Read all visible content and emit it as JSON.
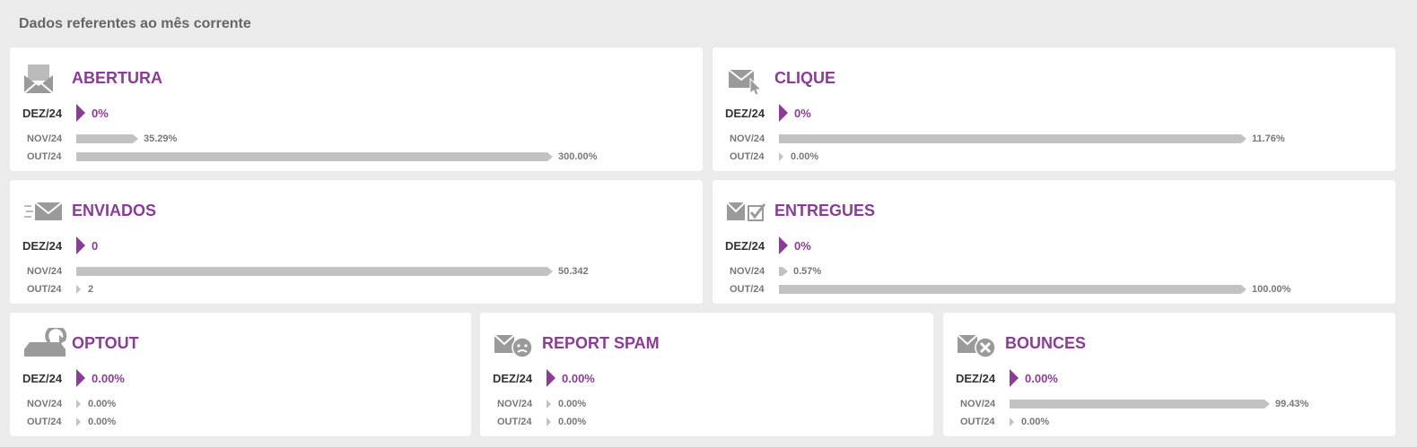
{
  "page_title": "Dados referentes ao mês corrente",
  "accent_color": "#8a3c96",
  "bar_color": "#c2c2c2",
  "cards": {
    "abertura": {
      "icon": "envelope-open-icon",
      "title": "ABERTURA",
      "current": {
        "label": "DEZ/24",
        "value": "0%"
      },
      "history": [
        {
          "label": "NOV/24",
          "value": "35.29%",
          "fill": 0.1176
        },
        {
          "label": "OUT/24",
          "value": "300.00%",
          "fill": 1.0
        }
      ]
    },
    "clique": {
      "icon": "envelope-click-icon",
      "title": "CLIQUE",
      "current": {
        "label": "DEZ/24",
        "value": "0%"
      },
      "history": [
        {
          "label": "NOV/24",
          "value": "11.76%",
          "fill": 1.0
        },
        {
          "label": "OUT/24",
          "value": "0.00%",
          "fill": 0
        }
      ]
    },
    "enviados": {
      "icon": "envelope-send-icon",
      "title": "ENVIADOS",
      "current": {
        "label": "DEZ/24",
        "value": "0"
      },
      "history": [
        {
          "label": "NOV/24",
          "value": "50.342",
          "fill": 1.0
        },
        {
          "label": "OUT/24",
          "value": "2",
          "fill": 0
        }
      ]
    },
    "entregues": {
      "icon": "envelope-check-icon",
      "title": "ENTREGUES",
      "current": {
        "label": "DEZ/24",
        "value": "0%"
      },
      "history": [
        {
          "label": "NOV/24",
          "value": "0.57%",
          "fill": 0.0057
        },
        {
          "label": "OUT/24",
          "value": "100.00%",
          "fill": 1.0
        }
      ]
    },
    "optout": {
      "icon": "optout-icon",
      "title": "OPTOUT",
      "current": {
        "label": "DEZ/24",
        "value": "0.00%"
      },
      "history": [
        {
          "label": "NOV/24",
          "value": "0.00%",
          "fill": 0
        },
        {
          "label": "OUT/24",
          "value": "0.00%",
          "fill": 0
        }
      ]
    },
    "spam": {
      "icon": "envelope-spam-icon",
      "title": "REPORT SPAM",
      "current": {
        "label": "DEZ/24",
        "value": "0.00%"
      },
      "history": [
        {
          "label": "NOV/24",
          "value": "0.00%",
          "fill": 0
        },
        {
          "label": "OUT/24",
          "value": "0.00%",
          "fill": 0
        }
      ]
    },
    "bounces": {
      "icon": "envelope-bounce-icon",
      "title": "BOUNCES",
      "current": {
        "label": "DEZ/24",
        "value": "0.00%"
      },
      "history": [
        {
          "label": "NOV/24",
          "value": "99.43%",
          "fill": 1.0
        },
        {
          "label": "OUT/24",
          "value": "0.00%",
          "fill": 0
        }
      ]
    }
  }
}
